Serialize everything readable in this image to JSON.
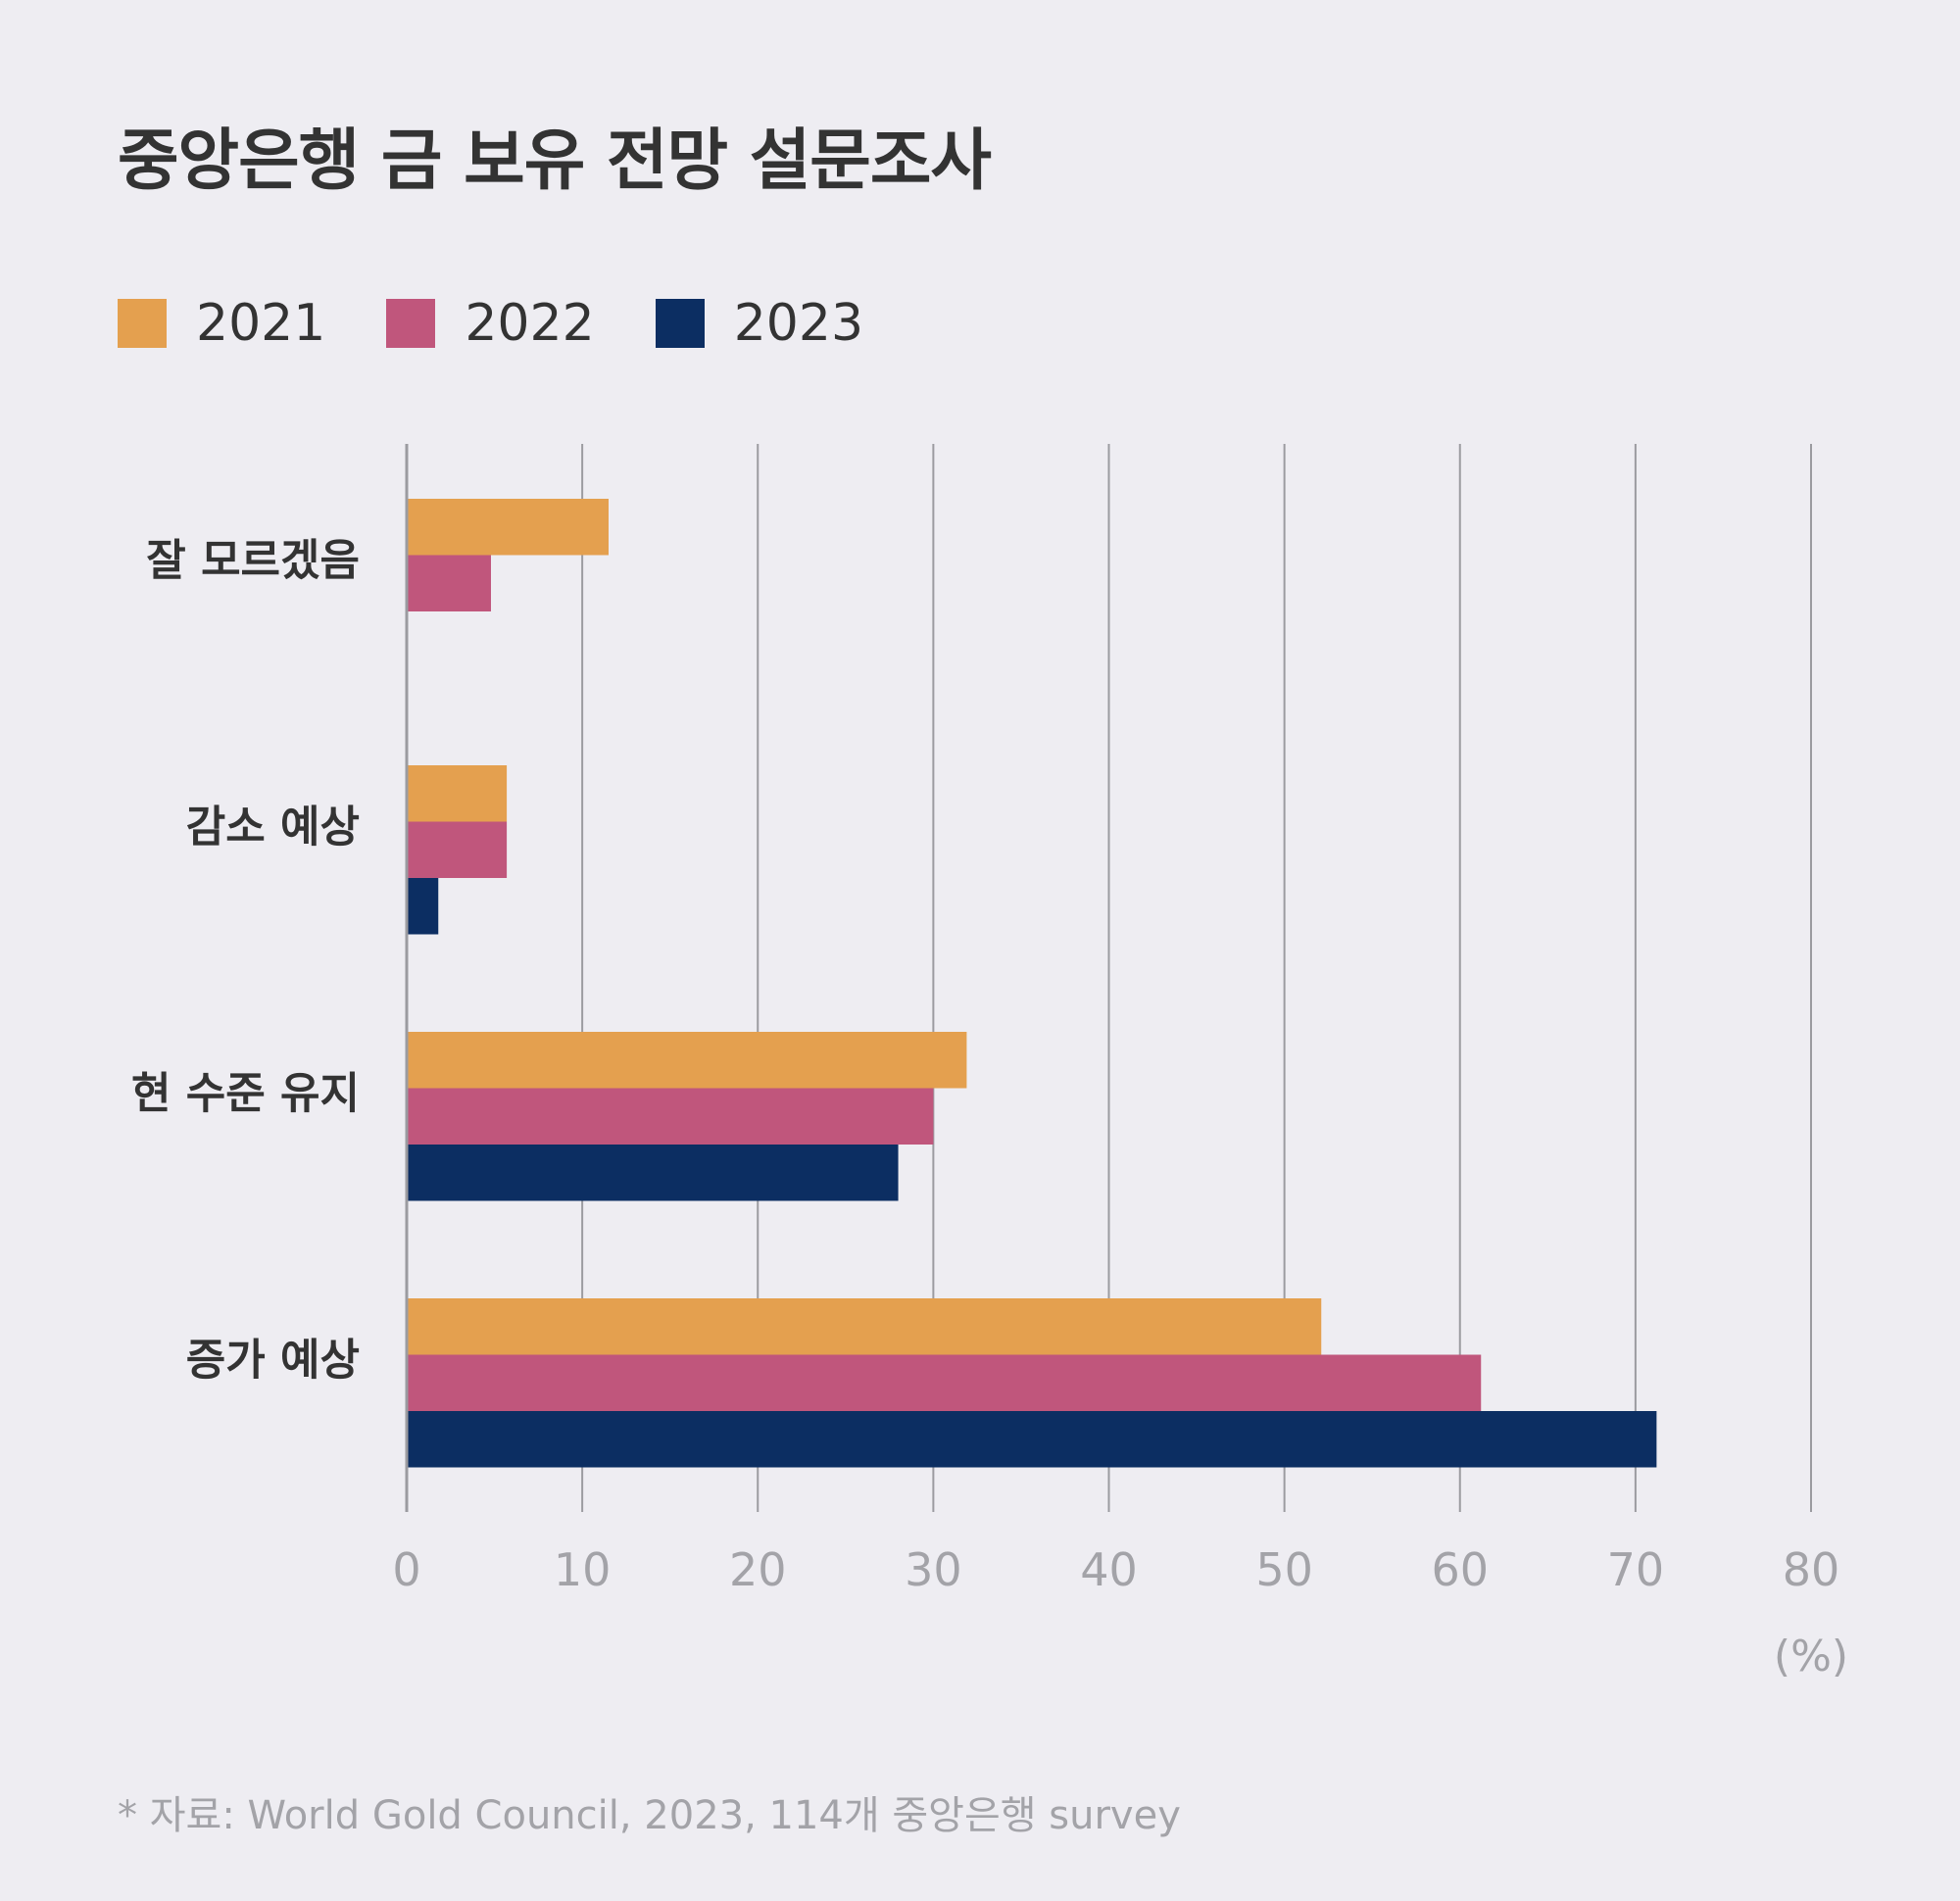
{
  "chart_data": {
    "type": "bar",
    "orientation": "horizontal",
    "title": "중앙은행 금 보유 전망 설문조사",
    "categories": [
      "잘 모르겠음",
      "감소 예상",
      "현 수준 유지",
      "증가 예상"
    ],
    "series": [
      {
        "name": "2021",
        "color": "#e4a04f",
        "values": [
          11.5,
          5.7,
          31.9,
          52.1
        ]
      },
      {
        "name": "2022",
        "color": "#c0567c",
        "values": [
          4.8,
          5.7,
          30.0,
          61.2
        ]
      },
      {
        "name": "2023",
        "color": "#0c2e62",
        "values": [
          0,
          1.8,
          28.0,
          71.2
        ]
      }
    ],
    "xlim": [
      0,
      80
    ],
    "xticks": [
      "0",
      "10",
      "20",
      "30",
      "40",
      "50",
      "60",
      "70",
      "80"
    ],
    "xunit": "(%)",
    "grid": "vertical",
    "legend": "top-left",
    "footnote": "* 자료: World Gold Council, 2023, 114개 중앙은행 survey"
  }
}
